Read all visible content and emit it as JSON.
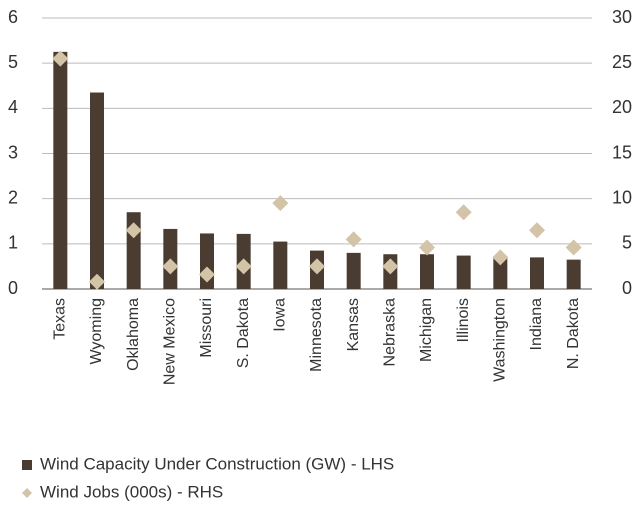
{
  "chart_data": {
    "type": "bar",
    "categories": [
      "Texas",
      "Wyoming",
      "Oklahoma",
      "New Mexico",
      "Missouri",
      "S. Dakota",
      "Iowa",
      "Minnesota",
      "Kansas",
      "Nebraska",
      "Michigan",
      "Illinois",
      "Washington",
      "Indiana",
      "N. Dakota"
    ],
    "series": [
      {
        "name": "Wind Capacity Under Construction (GW) - LHS",
        "type": "bar",
        "color": "#4a3c31",
        "values": [
          5.25,
          4.35,
          1.7,
          1.33,
          1.23,
          1.22,
          1.05,
          0.85,
          0.8,
          0.77,
          0.77,
          0.74,
          0.72,
          0.7,
          0.65
        ]
      },
      {
        "name": "Wind Jobs (000s) - RHS",
        "type": "scatter",
        "axis": "y2",
        "color": "#d3c4a8",
        "values": [
          25.5,
          0.8,
          6.5,
          2.5,
          1.6,
          2.5,
          9.5,
          2.5,
          5.5,
          2.5,
          4.6,
          8.5,
          3.5,
          6.5,
          4.6
        ]
      }
    ],
    "ylim": [
      0,
      6
    ],
    "yticks": [
      0,
      1,
      2,
      3,
      4,
      5,
      6
    ],
    "y2lim": [
      0,
      30
    ],
    "y2ticks": [
      0,
      5,
      10,
      15,
      20,
      25,
      30
    ],
    "grid": true,
    "legend": "bottom"
  }
}
